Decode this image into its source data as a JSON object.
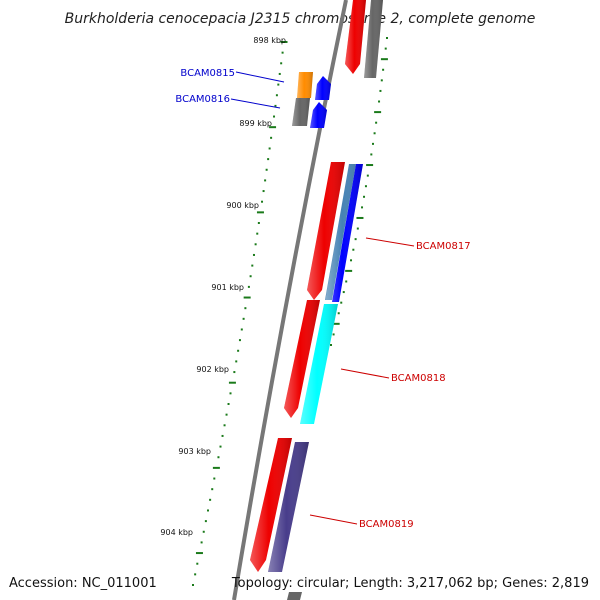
{
  "title": "Burkholderia cenocepacia J2315 chromosome 2, complete genome",
  "footer": {
    "accession": "Accession: NC_011001",
    "summary": "Topology: circular; Length: 3,217,062 bp; Genes: 2,819"
  },
  "scale_labels": [
    "898 kbp",
    "899 kbp",
    "900 kbp",
    "901 kbp",
    "902 kbp",
    "903 kbp",
    "904 kbp"
  ],
  "gene_labels": [
    {
      "name": "BCAM0815",
      "color": "#0000cc"
    },
    {
      "name": "BCAM0816",
      "color": "#0000cc"
    },
    {
      "name": "BCAM0817",
      "color": "#cc0000"
    },
    {
      "name": "BCAM0818",
      "color": "#cc0000"
    },
    {
      "name": "BCAM0819",
      "color": "#cc0000"
    }
  ],
  "colors": {
    "backbone": "#777777",
    "tick": "#1a7a1a",
    "cds_red": "#ee0000",
    "gray": "#666666",
    "orange": "#ff8c00",
    "blue": "#0000ff",
    "steel": "#4682b4",
    "cyan": "#00ffff",
    "slate": "#483d8b"
  }
}
